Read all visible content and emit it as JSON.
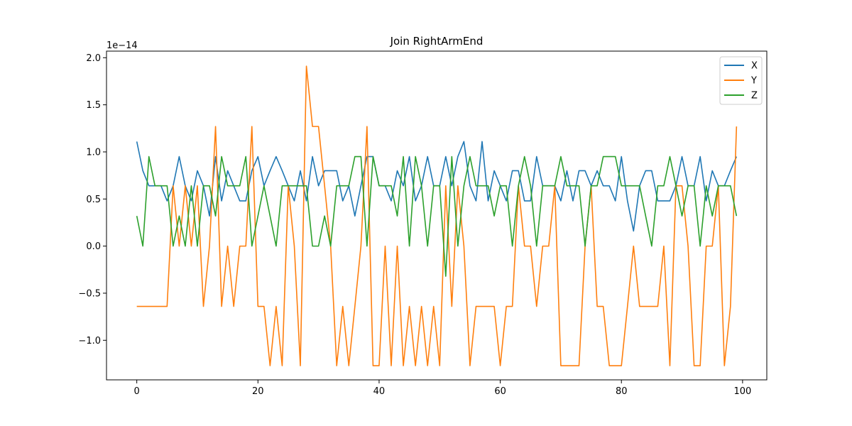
{
  "chart_data": {
    "type": "line",
    "title": "Join RightArmEnd",
    "xlabel": "",
    "ylabel": "",
    "y_scale_label": "1e−14",
    "xlim": [
      -5,
      104
    ],
    "ylim": [
      -1.42,
      2.07
    ],
    "xticks": [
      0,
      20,
      40,
      60,
      80,
      100
    ],
    "yticks": [
      -1.0,
      -0.5,
      0.0,
      0.5,
      1.0,
      1.5,
      2.0
    ],
    "ytick_labels": [
      "−1.0",
      "−0.5",
      "0.0",
      "0.5",
      "1.0",
      "1.5",
      "2.0"
    ],
    "grid": false,
    "legend_position": "top-right",
    "x": [
      0,
      1,
      2,
      3,
      4,
      5,
      6,
      7,
      8,
      9,
      10,
      11,
      12,
      13,
      14,
      15,
      16,
      17,
      18,
      19,
      20,
      21,
      22,
      23,
      24,
      25,
      26,
      27,
      28,
      29,
      30,
      31,
      32,
      33,
      34,
      35,
      36,
      37,
      38,
      39,
      40,
      41,
      42,
      43,
      44,
      45,
      46,
      47,
      48,
      49,
      50,
      51,
      52,
      53,
      54,
      55,
      56,
      57,
      58,
      59,
      60,
      61,
      62,
      63,
      64,
      65,
      66,
      67,
      68,
      69,
      70,
      71,
      72,
      73,
      74,
      75,
      76,
      77,
      78,
      79,
      80,
      81,
      82,
      83,
      84,
      85,
      86,
      87,
      88,
      89,
      90,
      91,
      92,
      93,
      94,
      95,
      96,
      97,
      98,
      99
    ],
    "series": [
      {
        "name": "X",
        "color": "#1f77b4",
        "values": [
          1.11,
          0.8,
          0.64,
          0.64,
          0.64,
          0.48,
          0.64,
          0.95,
          0.64,
          0.48,
          0.8,
          0.64,
          0.32,
          0.95,
          0.48,
          0.8,
          0.64,
          0.48,
          0.48,
          0.8,
          0.95,
          0.64,
          0.8,
          0.95,
          0.8,
          0.64,
          0.48,
          0.8,
          0.48,
          0.95,
          0.64,
          0.8,
          0.8,
          0.8,
          0.48,
          0.64,
          0.32,
          0.64,
          0.95,
          0.95,
          0.64,
          0.64,
          0.48,
          0.8,
          0.64,
          0.95,
          0.48,
          0.64,
          0.95,
          0.64,
          0.64,
          0.95,
          0.64,
          0.95,
          1.11,
          0.64,
          0.48,
          1.11,
          0.48,
          0.8,
          0.64,
          0.48,
          0.8,
          0.8,
          0.48,
          0.48,
          0.95,
          0.64,
          0.64,
          0.64,
          0.48,
          0.8,
          0.48,
          0.8,
          0.8,
          0.64,
          0.8,
          0.64,
          0.64,
          0.48,
          0.95,
          0.48,
          0.16,
          0.64,
          0.8,
          0.8,
          0.48,
          0.48,
          0.48,
          0.64,
          0.95,
          0.64,
          0.64,
          0.95,
          0.48,
          0.8,
          0.64,
          0.64,
          0.8,
          0.95
        ]
      },
      {
        "name": "Y",
        "color": "#ff7f0e",
        "values": [
          -0.64,
          -0.64,
          -0.64,
          -0.64,
          -0.64,
          -0.64,
          0.64,
          0.0,
          0.64,
          0.0,
          0.64,
          -0.64,
          0.0,
          1.27,
          -0.64,
          0.0,
          -0.64,
          0.0,
          0.0,
          1.27,
          -0.64,
          -0.64,
          -1.27,
          -0.64,
          -1.27,
          0.64,
          0.0,
          -1.27,
          1.91,
          1.27,
          1.27,
          0.64,
          0.0,
          -1.27,
          -0.64,
          -1.27,
          -0.64,
          0.0,
          1.27,
          -1.27,
          -1.27,
          0.0,
          -1.27,
          0.0,
          -1.27,
          -0.64,
          -1.27,
          -0.64,
          -1.27,
          -0.64,
          -1.27,
          0.64,
          -0.64,
          0.64,
          0.0,
          -1.27,
          -0.64,
          -0.64,
          -0.64,
          -0.64,
          -1.27,
          -0.64,
          -0.64,
          0.64,
          0.0,
          0.0,
          -0.64,
          0.0,
          0.0,
          0.64,
          -1.27,
          -1.27,
          -1.27,
          -1.27,
          0.0,
          0.64,
          -0.64,
          -0.64,
          -1.27,
          -1.27,
          -1.27,
          -0.64,
          0.0,
          -0.64,
          -0.64,
          -0.64,
          -0.64,
          0.0,
          -1.27,
          0.64,
          0.64,
          0.0,
          -1.27,
          -1.27,
          0.0,
          0.0,
          0.64,
          -1.27,
          -0.64,
          1.27
        ]
      },
      {
        "name": "Z",
        "color": "#2ca02c",
        "values": [
          0.32,
          0.0,
          0.95,
          0.64,
          0.64,
          0.64,
          0.0,
          0.32,
          0.0,
          0.64,
          0.0,
          0.64,
          0.64,
          0.32,
          0.95,
          0.64,
          0.64,
          0.64,
          0.95,
          0.0,
          0.32,
          0.64,
          0.32,
          0.0,
          0.64,
          0.64,
          0.64,
          0.64,
          0.64,
          0.0,
          0.0,
          0.32,
          0.0,
          0.64,
          0.64,
          0.64,
          0.95,
          0.95,
          0.0,
          0.95,
          0.64,
          0.64,
          0.64,
          0.32,
          0.95,
          0.0,
          0.95,
          0.64,
          0.0,
          0.64,
          0.64,
          -0.32,
          0.95,
          0.0,
          0.64,
          0.95,
          0.64,
          0.64,
          0.64,
          0.32,
          0.64,
          0.64,
          0.0,
          0.64,
          0.95,
          0.64,
          0.0,
          0.64,
          0.64,
          0.64,
          0.95,
          0.64,
          0.64,
          0.64,
          0.0,
          0.64,
          0.64,
          0.95,
          0.95,
          0.95,
          0.64,
          0.64,
          0.64,
          0.64,
          0.32,
          0.0,
          0.64,
          0.64,
          0.95,
          0.64,
          0.32,
          0.64,
          0.64,
          0.0,
          0.64,
          0.32,
          0.64,
          0.64,
          0.64,
          0.32
        ]
      }
    ]
  }
}
